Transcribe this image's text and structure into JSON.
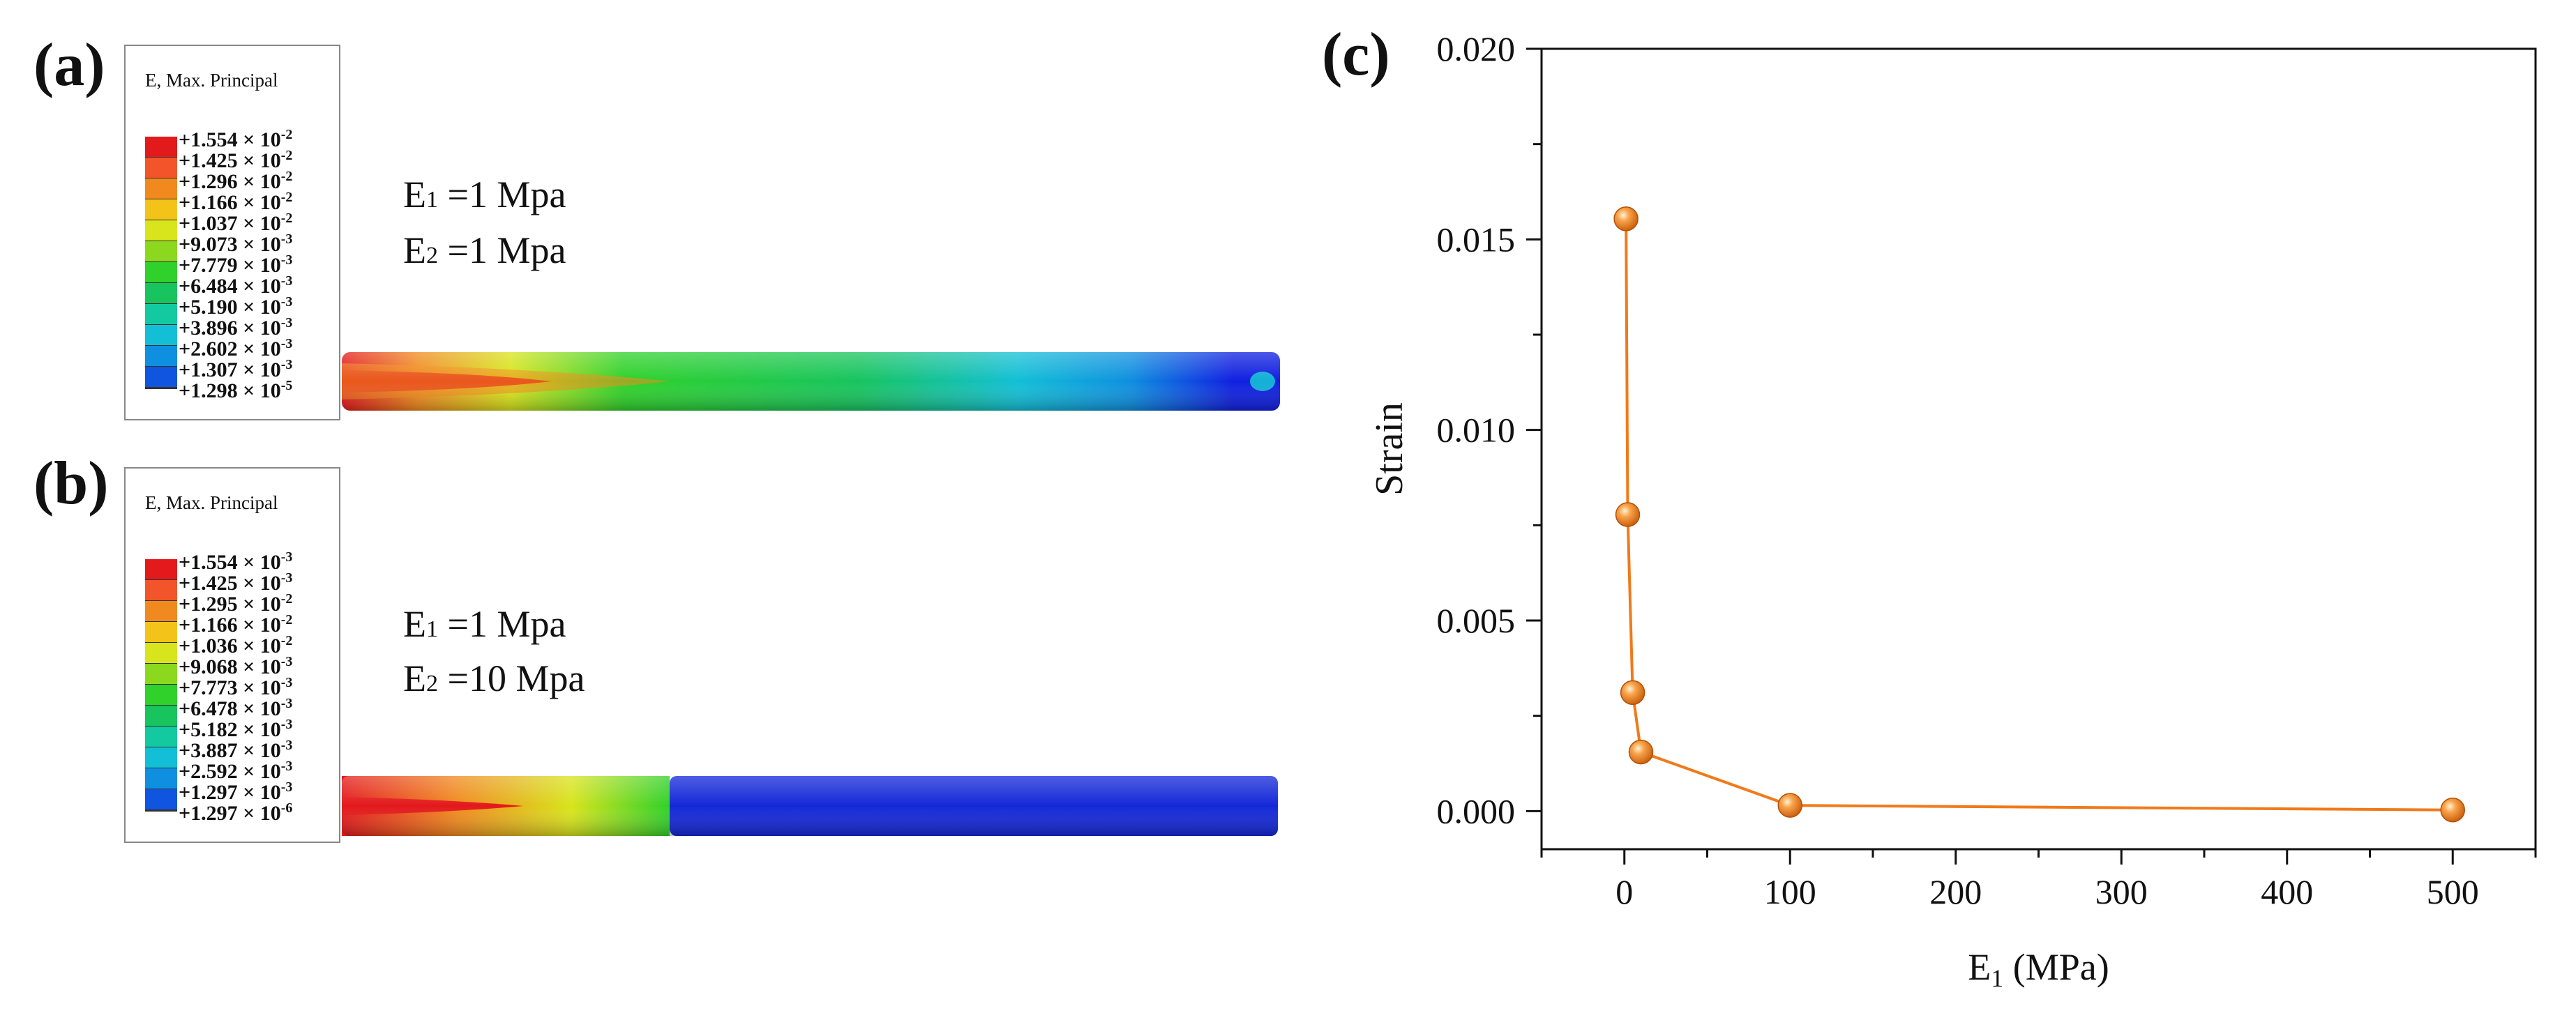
{
  "panel_a": {
    "label": "(a)",
    "legend_title": "E, Max. Principal",
    "legend_values": [
      {
        "mant": "+1.554",
        "exp": "-2"
      },
      {
        "mant": "+1.425",
        "exp": "-2"
      },
      {
        "mant": "+1.296",
        "exp": "-2"
      },
      {
        "mant": "+1.166",
        "exp": "-2"
      },
      {
        "mant": "+1.037",
        "exp": "-2"
      },
      {
        "mant": "+9.073",
        "exp": "-3"
      },
      {
        "mant": "+7.779",
        "exp": "-3"
      },
      {
        "mant": "+6.484",
        "exp": "-3"
      },
      {
        "mant": "+5.190",
        "exp": "-3"
      },
      {
        "mant": "+3.896",
        "exp": "-3"
      },
      {
        "mant": "+2.602",
        "exp": "-3"
      },
      {
        "mant": "+1.307",
        "exp": "-3"
      },
      {
        "mant": "+1.298",
        "exp": "-5"
      }
    ],
    "e1_label": "E",
    "e1_sub": "1",
    "e1_value": " =1 Mpa",
    "e2_label": "E",
    "e2_sub": "2",
    "e2_value": " =1 Mpa"
  },
  "panel_b": {
    "label": "(b)",
    "legend_title": "E, Max. Principal",
    "legend_values": [
      {
        "mant": "+1.554",
        "exp": "-3"
      },
      {
        "mant": "+1.425",
        "exp": "-3"
      },
      {
        "mant": "+1.295",
        "exp": "-2"
      },
      {
        "mant": "+1.166",
        "exp": "-2"
      },
      {
        "mant": "+1.036",
        "exp": "-2"
      },
      {
        "mant": "+9.068",
        "exp": "-3"
      },
      {
        "mant": "+7.773",
        "exp": "-3"
      },
      {
        "mant": "+6.478",
        "exp": "-3"
      },
      {
        "mant": "+5.182",
        "exp": "-3"
      },
      {
        "mant": "+3.887",
        "exp": "-3"
      },
      {
        "mant": "+2.592",
        "exp": "-3"
      },
      {
        "mant": "+1.297",
        "exp": "-3"
      },
      {
        "mant": "+1.297",
        "exp": "-6"
      }
    ],
    "e1_label": "E",
    "e1_sub": "1",
    "e1_value": " =1 Mpa",
    "e2_label": "E",
    "e2_sub": "2",
    "e2_value": " =10 Mpa"
  },
  "colormap": [
    "#e31a1c",
    "#f2552a",
    "#f08a1e",
    "#f3c31a",
    "#d8e41c",
    "#8bd81f",
    "#2fd12a",
    "#17c45e",
    "#13c9a0",
    "#12bfd6",
    "#0e8fe0",
    "#0f55e0",
    "#1020e0"
  ],
  "panel_c": {
    "label": "(c)",
    "x_tick_labels": [
      "0",
      "100",
      "200",
      "300",
      "400",
      "500"
    ],
    "y_tick_labels": [
      "0.000",
      "0.005",
      "0.010",
      "0.015",
      "0.020"
    ]
  },
  "chart_data": {
    "type": "line",
    "title": "",
    "xlabel": "E1 (MPa)",
    "xlabel_main": "E",
    "xlabel_sub": "1",
    "xlabel_unit": " (MPa)",
    "ylabel": "Strain",
    "xlim": [
      -50,
      550
    ],
    "ylim": [
      -0.001,
      0.02
    ],
    "x_ticks": [
      0,
      100,
      200,
      300,
      400,
      500
    ],
    "y_ticks": [
      0.0,
      0.005,
      0.01,
      0.015,
      0.02
    ],
    "grid": false,
    "series": [
      {
        "x": [
          1,
          2,
          5,
          10,
          100,
          500
        ],
        "y": [
          0.01554,
          0.00778,
          0.00311,
          0.00155,
          0.00015,
          3e-05
        ],
        "color": "#f07a1a"
      }
    ]
  }
}
